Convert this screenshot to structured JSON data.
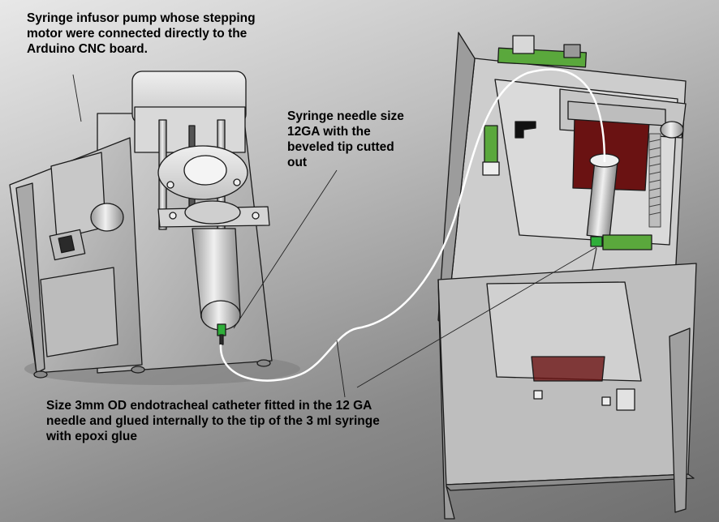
{
  "captions": {
    "pump": "Syringe infusor pump whose stepping\nmotor were connected directly to the\nArduino CNC board.",
    "needle": "Syringe needle size\n12GA with the\nbeveled tip cutted\nout",
    "catheter": "Size 3mm OD endotracheal catheter fitted in the 12 GA\nneedle and glued internally to the tip of the 3 ml syringe\nwith epoxi glue"
  },
  "colors": {
    "body_grey": "#cfcfcf",
    "edge": "#1a1a1a",
    "pcb_green": "#5aa83c",
    "tip_green": "#2fae3a",
    "dark_red": "#6a1212",
    "tube_white": "#ffffff"
  }
}
